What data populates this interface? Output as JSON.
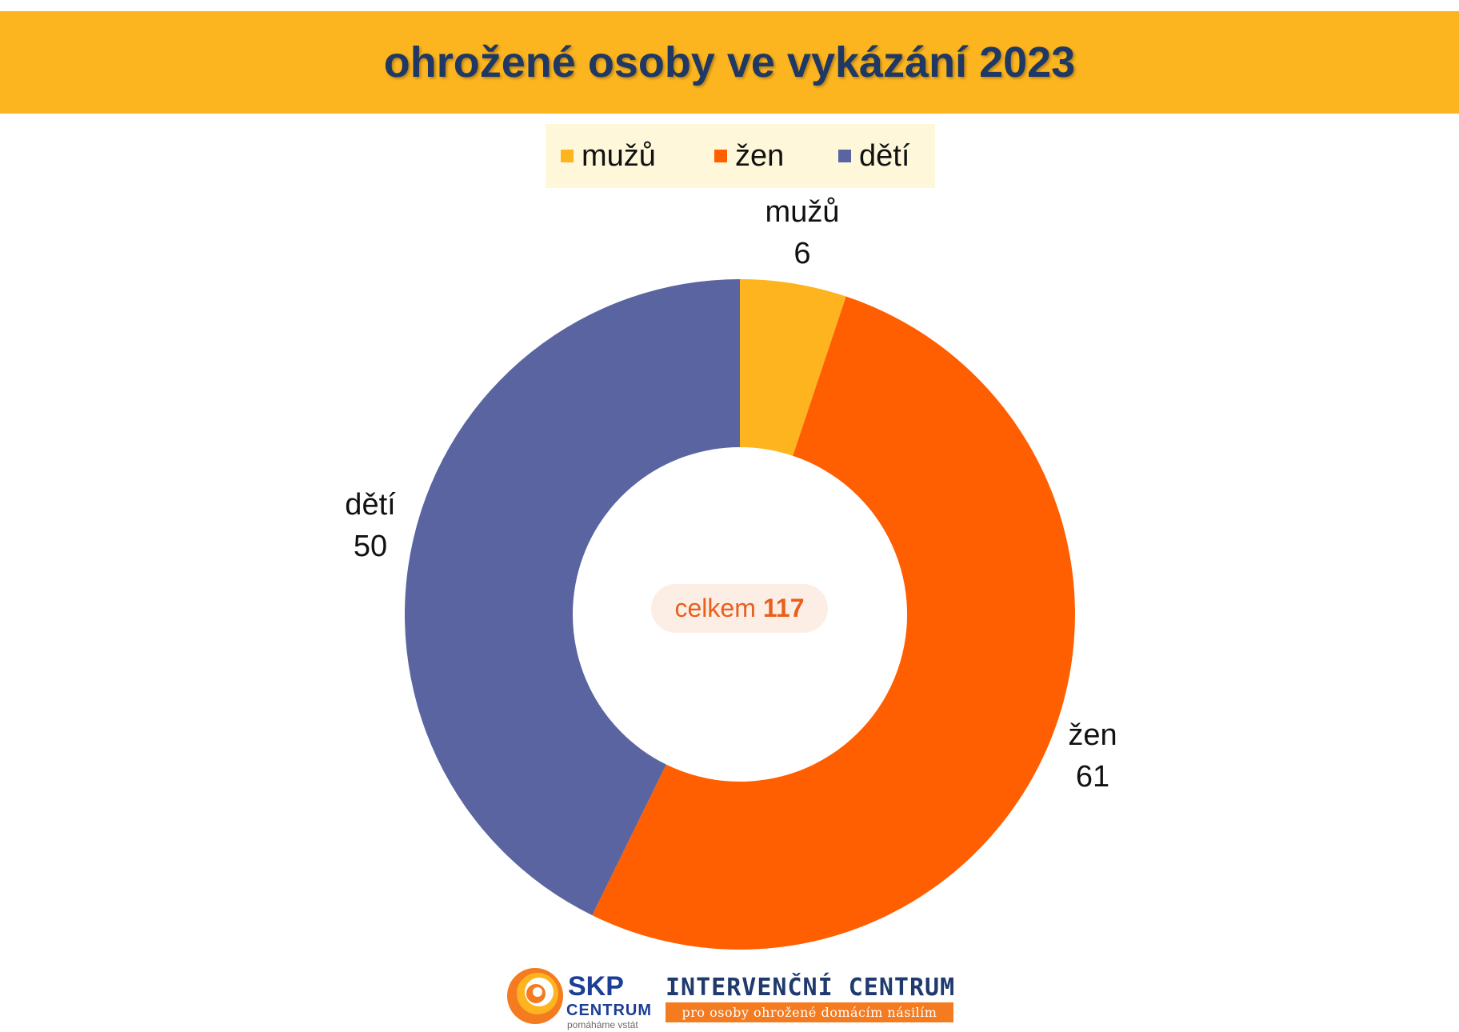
{
  "chart_data": {
    "type": "pie",
    "donut": true,
    "title": "ohrožené osoby ve vykázání 2023",
    "categories": [
      "mužů",
      "žen",
      "dětí"
    ],
    "values": [
      6,
      61,
      50
    ],
    "colors": [
      "#FDB41E",
      "#FF5F00",
      "#5A64A0"
    ],
    "legend": "top",
    "start_angle": "top, clockwise",
    "center_label": "celkem",
    "total": 117
  },
  "logos": {
    "skp": {
      "name": "SKP",
      "sub": "CENTRUM",
      "tagline": "pomáháme vstát"
    },
    "ic": {
      "title": "INTERVENČNÍ CENTRUM",
      "subtitle": "pro osoby ohrožené domácím násilím"
    }
  },
  "theme": {
    "title_bar": "#FDB51F",
    "title_text": "#1F3864",
    "legend_bg": "#FEF7DA",
    "center_bg": "#FDEEE5",
    "center_text": "#E8601C",
    "ic_bar": "#F47B20"
  }
}
